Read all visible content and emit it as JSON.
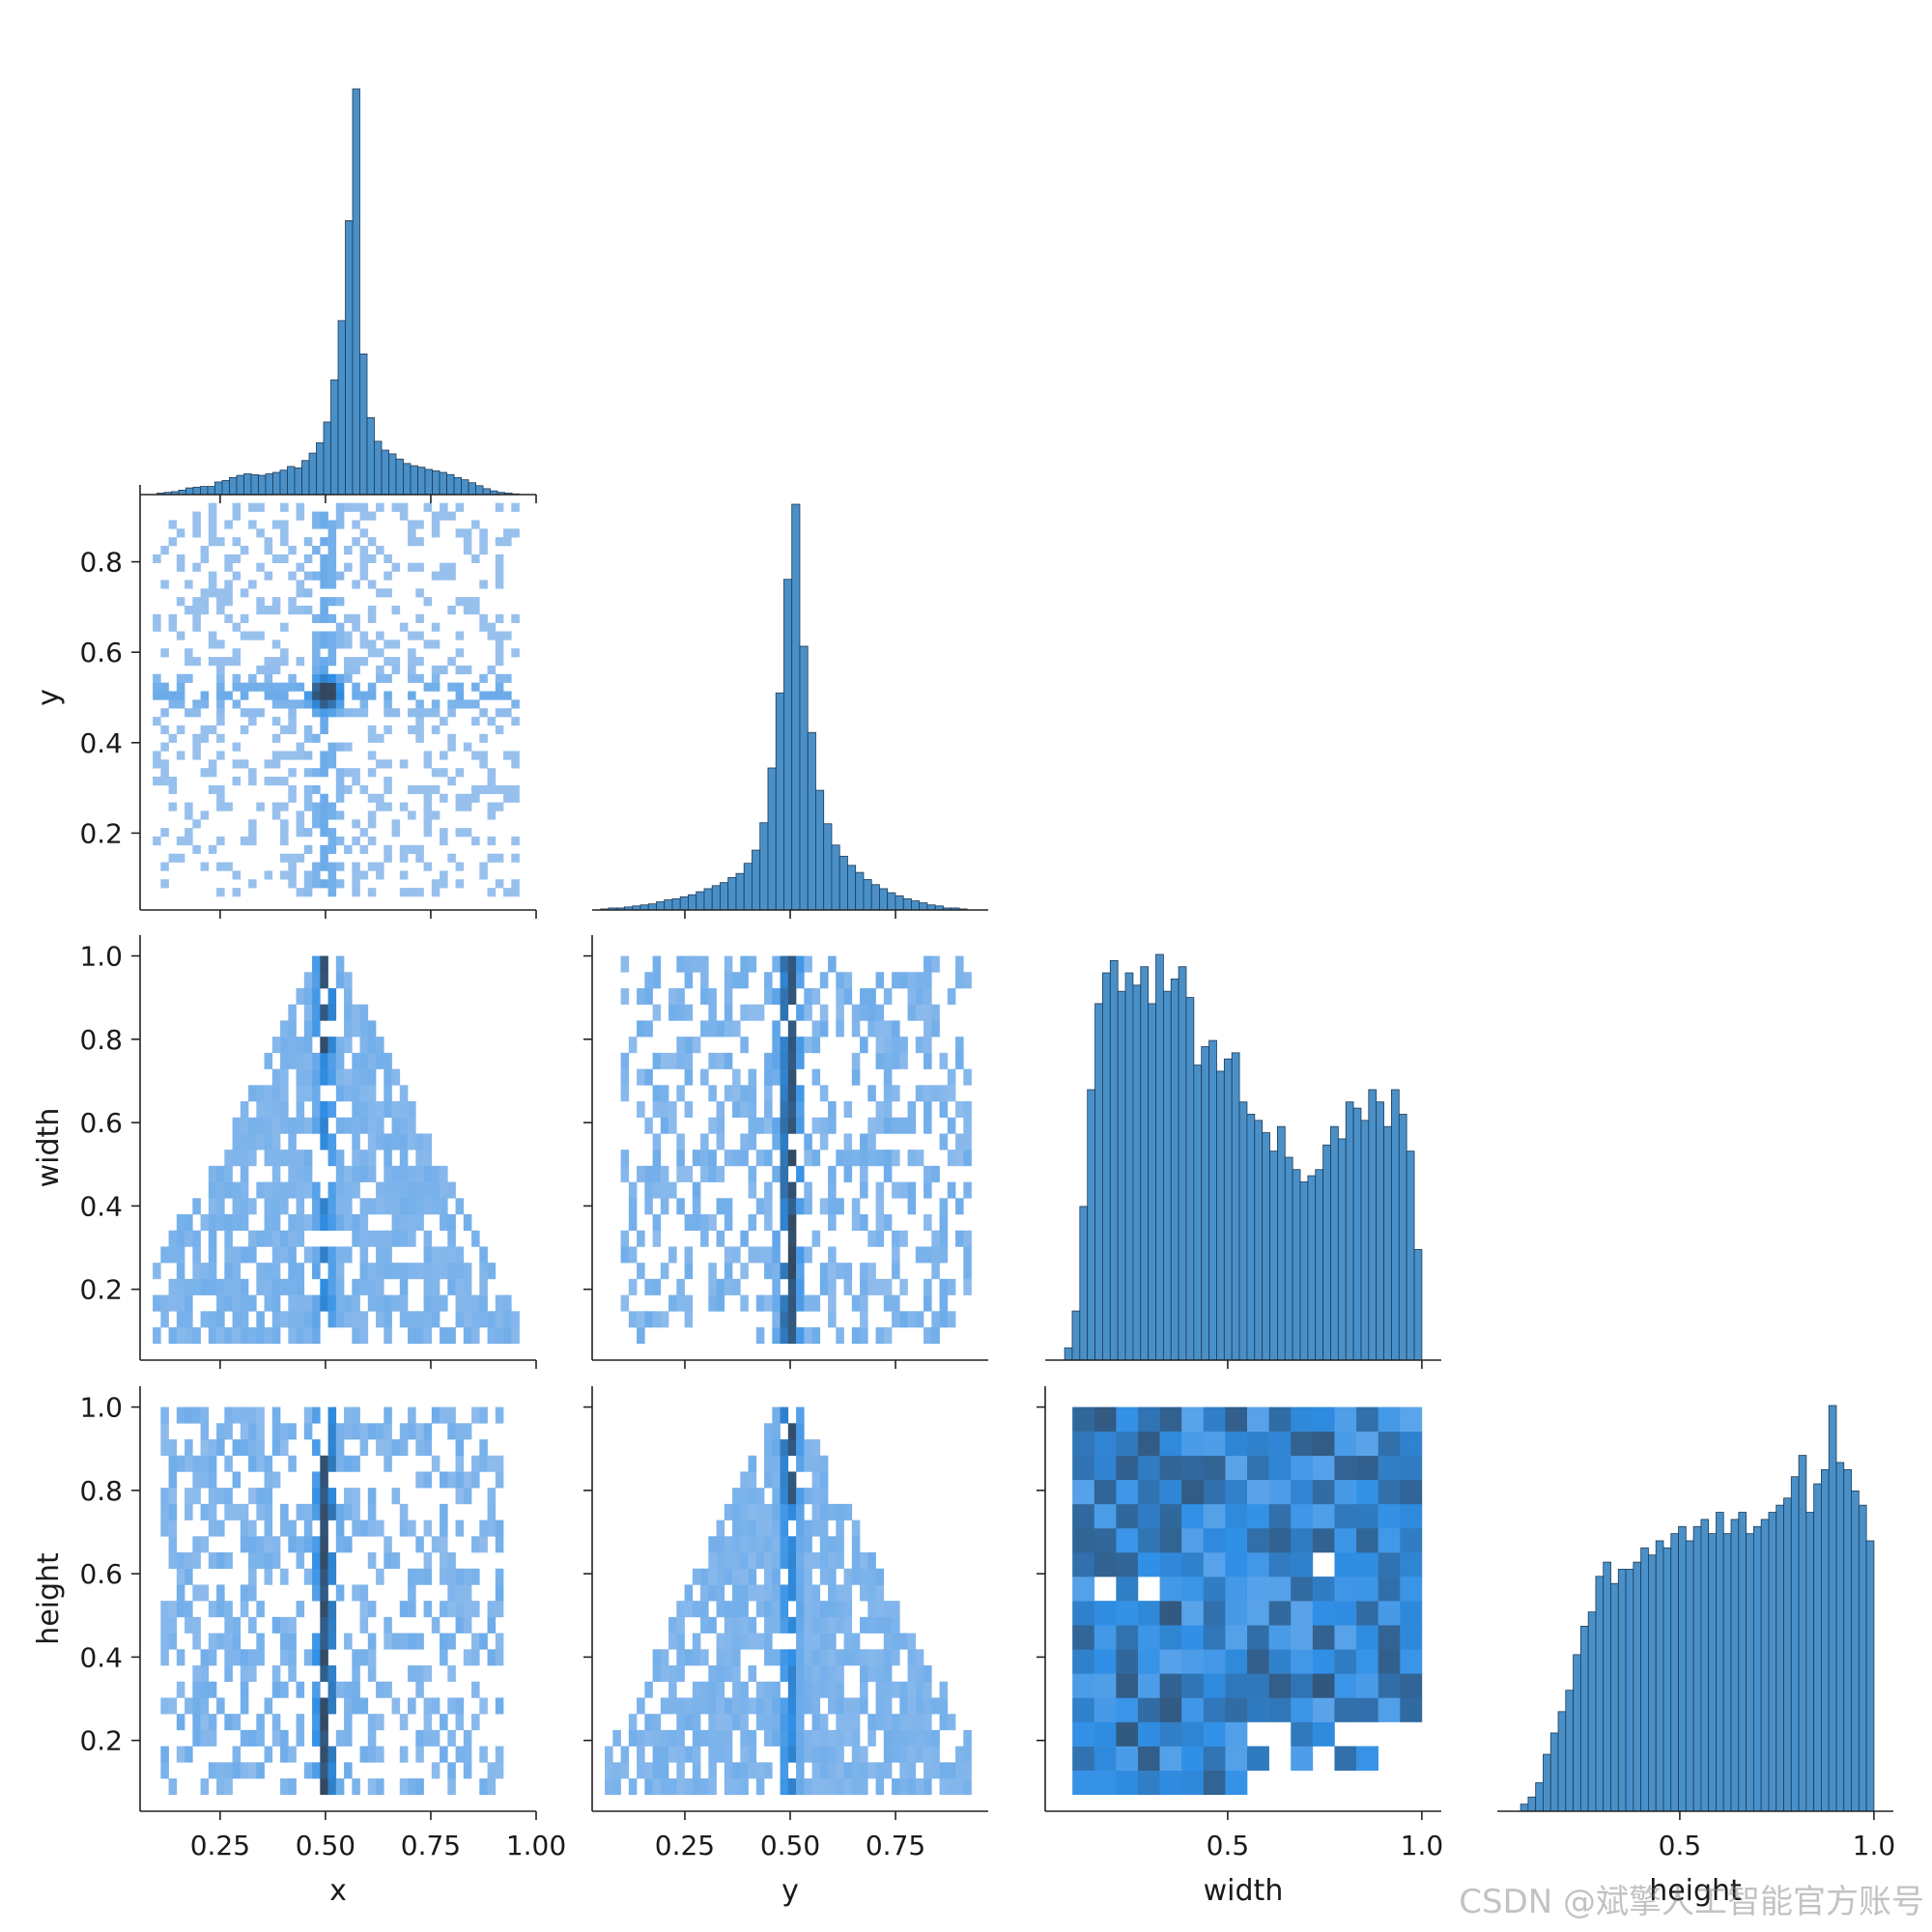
{
  "colors": {
    "hist_fill": "#4a90c8",
    "hist_edge": "#1f3a55",
    "density_low": "#a9c8ee",
    "density_mid": "#2f8fe6",
    "density_high": "#33475e",
    "axis": "#222222"
  },
  "watermark": "CSDN @斌擎人工智能官方账号",
  "chart_data": {
    "type": "pairplot-corner",
    "variables": [
      "x",
      "y",
      "width",
      "height"
    ],
    "axis_labels": {
      "x": "x",
      "y": "y",
      "width": "width",
      "height": "height"
    },
    "ranges": {
      "x": [
        0.06,
        1.0
      ],
      "y": [
        0.03,
        0.97
      ],
      "width": [
        0.03,
        1.05
      ],
      "height": [
        0.03,
        1.05
      ]
    },
    "x_ticks": {
      "x": [
        {
          "v": 0.25,
          "label": "0.25"
        },
        {
          "v": 0.5,
          "label": "0.50"
        },
        {
          "v": 0.75,
          "label": "0.75"
        },
        {
          "v": 1.0,
          "label": "1.00"
        }
      ],
      "y": [
        {
          "v": 0.25,
          "label": "0.25"
        },
        {
          "v": 0.5,
          "label": "0.50"
        },
        {
          "v": 0.75,
          "label": "0.75"
        }
      ],
      "width": [
        {
          "v": 0.5,
          "label": "0.5"
        },
        {
          "v": 1.0,
          "label": "1.0"
        }
      ],
      "height": [
        {
          "v": 0.5,
          "label": "0.5"
        },
        {
          "v": 1.0,
          "label": "1.0"
        }
      ]
    },
    "y_ticks": {
      "y": [
        {
          "v": 0.2,
          "label": "0.2"
        },
        {
          "v": 0.4,
          "label": "0.4"
        },
        {
          "v": 0.6,
          "label": "0.6"
        },
        {
          "v": 0.8,
          "label": "0.8"
        }
      ],
      "width": [
        {
          "v": 0.2,
          "label": "0.2"
        },
        {
          "v": 0.4,
          "label": "0.4"
        },
        {
          "v": 0.6,
          "label": "0.6"
        },
        {
          "v": 0.8,
          "label": "0.8"
        },
        {
          "v": 1.0,
          "label": "1.0"
        }
      ],
      "height": [
        {
          "v": 0.2,
          "label": "0.2"
        },
        {
          "v": 0.4,
          "label": "0.4"
        },
        {
          "v": 0.6,
          "label": "0.6"
        },
        {
          "v": 0.8,
          "label": "0.8"
        },
        {
          "v": 1.0,
          "label": "1.0"
        }
      ]
    },
    "histograms": {
      "x": {
        "bin_start": 0.1,
        "bin_end": 0.96,
        "counts": [
          2,
          3,
          4,
          6,
          9,
          10,
          11,
          11,
          17,
          19,
          23,
          26,
          28,
          27,
          26,
          28,
          30,
          33,
          38,
          36,
          46,
          56,
          70,
          98,
          155,
          235,
          370,
          548,
          190,
          104,
          72,
          60,
          55,
          48,
          42,
          39,
          37,
          34,
          32,
          30,
          27,
          23,
          20,
          16,
          12,
          8,
          5,
          3,
          2,
          1
        ]
      },
      "y": {
        "bin_start": 0.05,
        "bin_end": 0.92,
        "counts": [
          1,
          2,
          2,
          3,
          4,
          5,
          6,
          8,
          10,
          11,
          13,
          15,
          18,
          21,
          24,
          27,
          32,
          36,
          46,
          59,
          86,
          140,
          214,
          326,
          400,
          260,
          175,
          118,
          85,
          64,
          53,
          44,
          37,
          30,
          25,
          21,
          17,
          14,
          11,
          9,
          7,
          5,
          4,
          2,
          2,
          1
        ]
      },
      "width": {
        "bin_start": 0.08,
        "bin_end": 1.0,
        "counts": [
          2,
          8,
          25,
          44,
          58,
          63,
          65,
          60,
          63,
          61,
          64,
          58,
          66,
          60,
          62,
          64,
          59,
          48,
          51,
          52,
          47,
          49,
          50,
          42,
          40,
          39,
          37,
          34,
          38,
          33,
          31,
          29,
          30,
          31,
          35,
          38,
          36,
          42,
          41,
          39,
          44,
          42,
          38,
          44,
          40,
          34,
          18
        ]
      },
      "height": {
        "bin_start": 0.09,
        "bin_end": 1.0,
        "counts": [
          1,
          2,
          4,
          8,
          11,
          14,
          17,
          22,
          26,
          28,
          33,
          35,
          32,
          34,
          34,
          35,
          37,
          36,
          38,
          37,
          39,
          40,
          38,
          40,
          41,
          39,
          42,
          39,
          41,
          42,
          39,
          40,
          41,
          42,
          43,
          44,
          47,
          50,
          42,
          46,
          48,
          57,
          49,
          48,
          45,
          43,
          38
        ]
      }
    },
    "density_shapes": {
      "x_y": "central_cross",
      "x_width": "triangle_peak_center",
      "y_width": "vertical_band_center",
      "x_height": "vertical_band_center",
      "y_height": "triangle_peak_center",
      "width_height": "dense_square"
    }
  }
}
